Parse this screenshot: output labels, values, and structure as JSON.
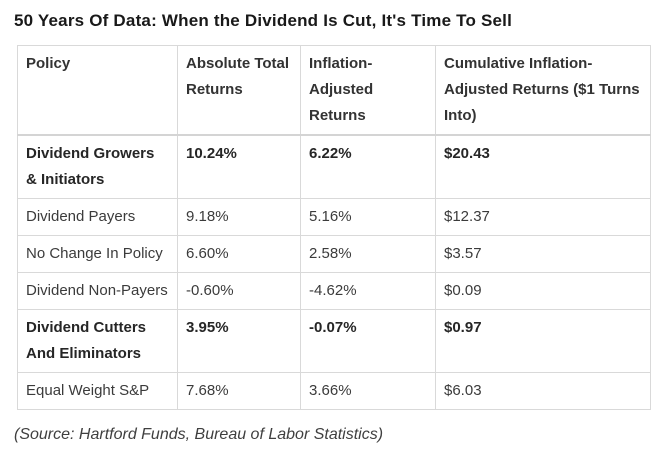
{
  "chart_data": {
    "type": "table",
    "title": "50 Years Of Data: When the Dividend Is Cut, It's Time To Sell",
    "columns": [
      "Policy",
      "Absolute Total Returns",
      "Inflation-Adjusted Returns",
      "Cumulative Inflation-Adjusted Returns ($1 Turns Into)"
    ],
    "rows": [
      [
        "Dividend Growers & Initiators",
        "10.24%",
        "6.22%",
        "$20.43"
      ],
      [
        "Dividend Payers",
        "9.18%",
        "5.16%",
        "$12.37"
      ],
      [
        "No Change In Policy",
        "6.60%",
        "2.58%",
        "$3.57"
      ],
      [
        "Dividend Non-Payers",
        "-0.60%",
        "-4.62%",
        "$0.09"
      ],
      [
        "Dividend Cutters And Eliminators",
        "3.95%",
        "-0.07%",
        "$0.97"
      ],
      [
        "Equal Weight S&P",
        "7.68%",
        "3.66%",
        "$6.03"
      ]
    ],
    "bold_rows": [
      0,
      4
    ],
    "source": "(Source: Hartford Funds, Bureau of Labor Statistics)",
    "layout_hints": {
      "grid": "full-borders",
      "header_position": "top",
      "emphasis": "best and worst dividend policies shown in bold"
    }
  },
  "colors": {
    "background": "#ffffff",
    "border": "#d9d9d9",
    "title_text": "#191919",
    "body_text": "#3b3b3b",
    "bold_text": "#262626",
    "source_text": "#3f3f3f"
  }
}
